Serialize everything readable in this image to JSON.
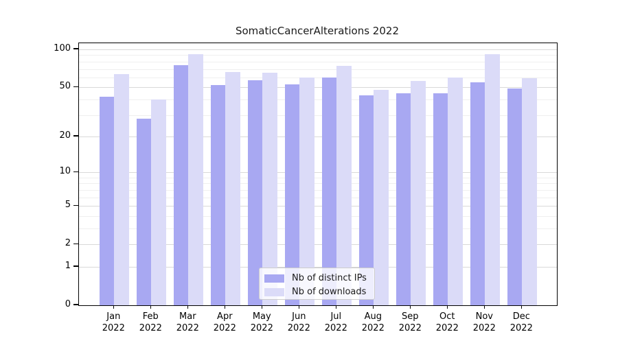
{
  "figure": {
    "title": "SomaticCancerAlterations 2022",
    "background": "#ffffff"
  },
  "legend": {
    "position": "lower center",
    "items": [
      {
        "label": "Nb of distinct IPs",
        "color": "#a8a8f2"
      },
      {
        "label": "Nb of downloads",
        "color": "#dbdbf8"
      }
    ]
  },
  "chart_data": {
    "type": "bar",
    "title": "SomaticCancerAlterations 2022",
    "categories": [
      "Jan 2022",
      "Feb 2022",
      "Mar 2022",
      "Apr 2022",
      "May 2022",
      "Jun 2022",
      "Jul 2022",
      "Aug 2022",
      "Sep 2022",
      "Oct 2022",
      "Nov 2022",
      "Dec 2022"
    ],
    "series": [
      {
        "name": "Nb of distinct IPs",
        "color": "#a8a8f2",
        "values": [
          42,
          28,
          75,
          52,
          57,
          53,
          60,
          43,
          45,
          45,
          55,
          49
        ]
      },
      {
        "name": "Nb of downloads",
        "color": "#dbdbf8",
        "values": [
          64,
          40,
          92,
          66,
          65,
          60,
          74,
          48,
          56,
          60,
          92,
          59
        ]
      }
    ],
    "xlabel": "",
    "ylabel": "",
    "yscale": "log1p",
    "yticks": [
      0,
      1,
      2,
      5,
      10,
      20,
      50,
      100
    ],
    "minor_yticks": [
      3,
      4,
      6,
      7,
      8,
      9,
      30,
      40,
      60,
      70,
      80,
      90
    ],
    "ylim": [
      0,
      112
    ],
    "grid": "both",
    "legend_position": "lower center"
  }
}
